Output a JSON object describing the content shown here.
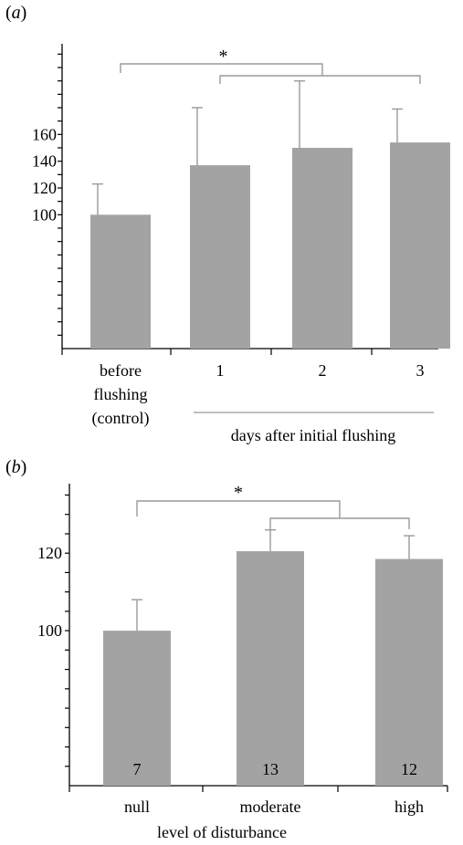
{
  "chart_data": [
    {
      "type": "bar",
      "panel_label": "a",
      "categories": [
        "before flushing (control)",
        "1",
        "2",
        "3"
      ],
      "category_lines": [
        [
          "before",
          "flushing",
          "(control)"
        ],
        [
          "1"
        ],
        [
          "2"
        ],
        [
          "3"
        ]
      ],
      "group_label": "days after initial flushing",
      "values": [
        100,
        137,
        150,
        154
      ],
      "error_upper": [
        123,
        180,
        200,
        179
      ],
      "ylim": [
        0,
        225
      ],
      "yticks_labeled": [
        100,
        120,
        140,
        160
      ],
      "ytick_step": 10,
      "significance": {
        "symbol": "*",
        "from": 0,
        "to": [
          1,
          2,
          3
        ]
      },
      "bar_color": "#a3a3a3",
      "annotation_color": "#9a9a9a"
    },
    {
      "type": "bar",
      "panel_label": "b",
      "categories": [
        "null",
        "moderate",
        "high"
      ],
      "values": [
        100,
        120.5,
        118.5
      ],
      "error_upper": [
        108,
        126,
        124.5
      ],
      "n_labels": [
        "7",
        "13",
        "12"
      ],
      "xlabel": "level of disturbance",
      "ylim": [
        60,
        137
      ],
      "yticks_labeled": [
        100,
        120
      ],
      "ytick_step": 5,
      "significance": {
        "symbol": "*",
        "from": 0,
        "to": [
          1,
          2
        ]
      },
      "bar_color": "#a3a3a3",
      "annotation_color": "#9a9a9a"
    }
  ]
}
